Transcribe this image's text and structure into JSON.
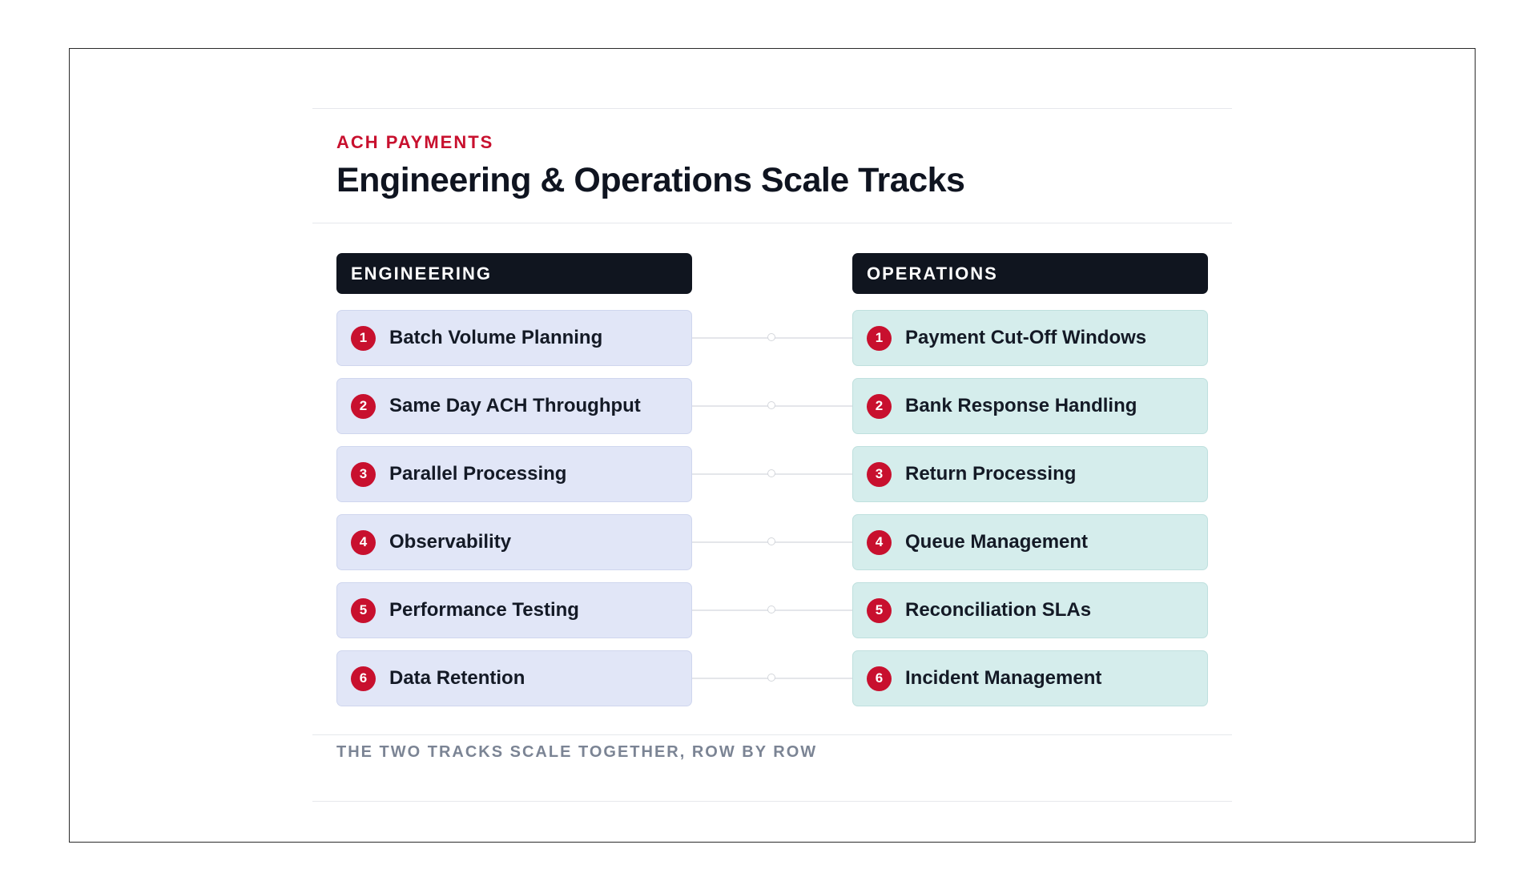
{
  "header": {
    "eyebrow": "ACH PAYMENTS",
    "title": "Engineering & Operations Scale Tracks"
  },
  "columns": {
    "engineering": {
      "heading": "ENGINEERING",
      "items": [
        {
          "number": "1",
          "label": "Batch Volume Planning"
        },
        {
          "number": "2",
          "label": "Same Day ACH Throughput"
        },
        {
          "number": "3",
          "label": "Parallel Processing"
        },
        {
          "number": "4",
          "label": "Observability"
        },
        {
          "number": "5",
          "label": "Performance Testing"
        },
        {
          "number": "6",
          "label": "Data Retention"
        }
      ]
    },
    "operations": {
      "heading": "OPERATIONS",
      "items": [
        {
          "number": "1",
          "label": "Payment Cut-Off Windows"
        },
        {
          "number": "2",
          "label": "Bank Response Handling"
        },
        {
          "number": "3",
          "label": "Return Processing"
        },
        {
          "number": "4",
          "label": "Queue Management"
        },
        {
          "number": "5",
          "label": "Reconciliation SLAs"
        },
        {
          "number": "6",
          "label": "Incident Management"
        }
      ]
    }
  },
  "footer": {
    "caption": "THE TWO TRACKS SCALE TOGETHER, ROW BY ROW"
  },
  "colors": {
    "accent": "#c8102e",
    "header_bg": "#10151f",
    "engineering_item_bg": "#e1e6f7",
    "operations_item_bg": "#d5edec"
  }
}
